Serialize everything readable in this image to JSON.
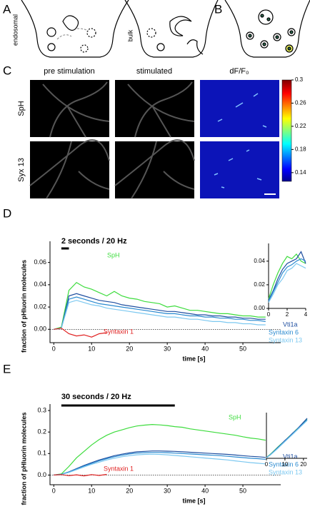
{
  "panel_labels": [
    "A",
    "B",
    "C",
    "D",
    "E"
  ],
  "panel_a": {
    "labels": [
      "endosomal",
      "bulk"
    ]
  },
  "panel_c": {
    "columns": [
      "pre stimulation",
      "stimulated",
      "dF/F₀"
    ],
    "rows": [
      "SpH",
      "Syx 13"
    ],
    "colorbar": {
      "ylim": [
        0.125,
        0.3
      ],
      "yticks": [
        0.3,
        0.26,
        0.22,
        0.18,
        0.14
      ]
    }
  },
  "chart_data": [
    {
      "type": "line",
      "xlabel": "time [s]",
      "ylabel": "fraction of pHluorin molecules",
      "stimulus": {
        "label": "2 seconds / 20 Hz",
        "x": [
          2,
          4
        ]
      },
      "xlim": [
        -1,
        60
      ],
      "xticks": [
        0,
        10,
        20,
        30,
        40,
        50
      ],
      "ylim": [
        -0.012,
        0.079
      ],
      "yticks": [
        {
          "value": 0,
          "label": "0.00"
        },
        0.02,
        0.04,
        0.06
      ],
      "x": [
        0,
        2,
        4,
        6,
        8,
        10,
        12,
        14,
        16,
        18,
        20,
        22,
        24,
        26,
        28,
        30,
        32,
        34,
        36,
        38,
        40,
        42,
        44,
        46,
        48,
        50,
        52,
        54,
        56
      ],
      "series": [
        {
          "name": "SpH",
          "color": "#3ddc3d",
          "values": [
            0,
            0.002,
            0.035,
            0.042,
            0.038,
            0.036,
            0.033,
            0.03,
            0.034,
            0.03,
            0.028,
            0.027,
            0.025,
            0.024,
            0.023,
            0.02,
            0.021,
            0.019,
            0.017,
            0.017,
            0.016,
            0.015,
            0.014,
            0.014,
            0.013,
            0.012,
            0.012,
            0.011,
            0.011
          ]
        },
        {
          "name": "Vti1a",
          "color": "#1f4fa0",
          "values": [
            0,
            0.001,
            0.03,
            0.032,
            0.03,
            0.028,
            0.026,
            0.025,
            0.024,
            0.022,
            0.021,
            0.02,
            0.019,
            0.018,
            0.017,
            0.016,
            0.016,
            0.015,
            0.014,
            0.013,
            0.013,
            0.012,
            0.012,
            0.011,
            0.011,
            0.01,
            0.01,
            0.009,
            0.009
          ]
        },
        {
          "name": "Syntaxin 6",
          "color": "#2a8ad0",
          "values": [
            0,
            0.001,
            0.027,
            0.029,
            0.027,
            0.025,
            0.023,
            0.022,
            0.021,
            0.02,
            0.019,
            0.018,
            0.017,
            0.016,
            0.015,
            0.014,
            0.014,
            0.013,
            0.012,
            0.012,
            0.011,
            0.011,
            0.01,
            0.01,
            0.009,
            0.009,
            0.008,
            0.008,
            0.007
          ]
        },
        {
          "name": "Syntaxin 13",
          "color": "#7cc8f0",
          "values": [
            0,
            0.001,
            0.024,
            0.026,
            0.024,
            0.022,
            0.021,
            0.019,
            0.018,
            0.017,
            0.016,
            0.015,
            0.014,
            0.013,
            0.012,
            0.011,
            0.011,
            0.01,
            0.009,
            0.009,
            0.008,
            0.007,
            0.007,
            0.006,
            0.006,
            0.005,
            0.005,
            0.004,
            0.004
          ]
        },
        {
          "name": "Syntaxin 1",
          "color": "#e02020",
          "values": [
            0,
            0.001,
            -0.004,
            -0.006,
            -0.005,
            -0.007,
            -0.004,
            -0.003,
            null,
            null,
            null,
            null,
            null,
            null,
            null,
            null,
            null,
            null,
            null,
            null,
            null,
            null,
            null,
            null,
            null,
            null,
            null,
            null,
            null
          ]
        }
      ]
    },
    {
      "type": "line",
      "xlim": [
        0,
        4
      ],
      "xticks": [
        0,
        2,
        4
      ],
      "ylim": [
        0,
        0.055
      ],
      "yticks": [
        {
          "value": 0,
          "label": "0.00"
        },
        0.02,
        0.04
      ],
      "x": [
        0,
        0.5,
        1,
        1.5,
        2,
        2.5,
        3,
        3.5,
        4
      ],
      "series": [
        {
          "color": "#3ddc3d",
          "values": [
            0.008,
            0.02,
            0.03,
            0.038,
            0.044,
            0.042,
            0.046,
            0.04,
            0.038
          ]
        },
        {
          "color": "#1f4fa0",
          "values": [
            0.007,
            0.015,
            0.025,
            0.033,
            0.038,
            0.04,
            0.042,
            0.048,
            0.038
          ]
        },
        {
          "color": "#2a8ad0",
          "values": [
            0.006,
            0.014,
            0.022,
            0.03,
            0.035,
            0.037,
            0.04,
            0.042,
            0.04
          ]
        },
        {
          "color": "#7cc8f0",
          "values": [
            0.005,
            0.012,
            0.02,
            0.025,
            0.032,
            0.034,
            0.038,
            0.036,
            0.034
          ]
        }
      ]
    },
    {
      "type": "line",
      "xlabel": "time [s]",
      "ylabel": "fraction of pHluorin molecules",
      "stimulus": {
        "label": "30 seconds / 20 Hz",
        "x": [
          2,
          32
        ]
      },
      "xlim": [
        -1,
        60
      ],
      "xticks": [
        0,
        10,
        20,
        30,
        40,
        50
      ],
      "ylim": [
        -0.045,
        0.33
      ],
      "yticks": [
        {
          "value": 0,
          "label": "0.0"
        },
        0.1,
        0.2,
        0.3
      ],
      "x": [
        0,
        2,
        4,
        6,
        8,
        10,
        12,
        14,
        16,
        18,
        20,
        22,
        24,
        26,
        28,
        30,
        32,
        34,
        36,
        38,
        40,
        42,
        44,
        46,
        48,
        50,
        52,
        54,
        56
      ],
      "series": [
        {
          "name": "SpH",
          "color": "#3ddc3d",
          "values": [
            0,
            0.005,
            0.04,
            0.08,
            0.11,
            0.14,
            0.165,
            0.185,
            0.2,
            0.21,
            0.22,
            0.228,
            0.232,
            0.235,
            0.233,
            0.23,
            0.225,
            0.222,
            0.215,
            0.21,
            0.205,
            0.2,
            0.195,
            0.19,
            0.185,
            0.178,
            0.172,
            0.168,
            0.162
          ]
        },
        {
          "name": "Vti1a",
          "color": "#1f4fa0",
          "values": [
            0,
            0.003,
            0.015,
            0.03,
            0.045,
            0.058,
            0.07,
            0.08,
            0.09,
            0.097,
            0.103,
            0.108,
            0.11,
            0.112,
            0.112,
            0.111,
            0.11,
            0.108,
            0.106,
            0.104,
            0.102,
            0.1,
            0.098,
            0.096,
            0.093,
            0.09,
            0.087,
            0.085,
            0.082
          ]
        },
        {
          "name": "Syntaxin 6",
          "color": "#2a8ad0",
          "values": [
            0,
            0.003,
            0.014,
            0.028,
            0.042,
            0.054,
            0.066,
            0.076,
            0.085,
            0.092,
            0.098,
            0.102,
            0.104,
            0.105,
            0.105,
            0.104,
            0.102,
            0.1,
            0.098,
            0.096,
            0.094,
            0.092,
            0.09,
            0.087,
            0.084,
            0.081,
            0.078,
            0.076,
            0.073
          ]
        },
        {
          "name": "Syntaxin 13",
          "color": "#7cc8f0",
          "values": [
            0,
            0.002,
            0.012,
            0.025,
            0.038,
            0.05,
            0.06,
            0.07,
            0.078,
            0.085,
            0.09,
            0.094,
            0.096,
            0.097,
            0.096,
            0.094,
            0.091,
            0.088,
            0.085,
            0.082,
            0.079,
            0.076,
            0.073,
            0.07,
            0.066,
            0.062,
            0.058,
            0.055,
            0.052
          ]
        },
        {
          "name": "Syntaxin 1",
          "color": "#e02020",
          "values": [
            0,
            0.002,
            -0.003,
            0.001,
            -0.004,
            0.002,
            -0.002,
            0.003,
            null,
            null,
            null,
            null,
            null,
            null,
            null,
            null,
            null,
            null,
            null,
            null,
            null,
            null,
            null,
            null,
            null,
            null,
            null,
            null,
            null
          ]
        }
      ]
    },
    {
      "type": "line",
      "xlim": [
        0,
        22
      ],
      "xticks": [
        0,
        10,
        20
      ],
      "ylim": [
        0,
        0.26
      ],
      "x": [
        0,
        2,
        4,
        6,
        8,
        10,
        12,
        14,
        16,
        18,
        20,
        22
      ],
      "series": [
        {
          "color": "#3ddc3d",
          "values": [
            0.005,
            0.022,
            0.042,
            0.062,
            0.082,
            0.1,
            0.122,
            0.14,
            0.162,
            0.18,
            0.2,
            0.222
          ]
        },
        {
          "color": "#1f4fa0",
          "values": [
            0.004,
            0.02,
            0.04,
            0.06,
            0.08,
            0.102,
            0.12,
            0.142,
            0.16,
            0.182,
            0.205,
            0.228
          ]
        },
        {
          "color": "#2a8ad0",
          "values": [
            0.004,
            0.019,
            0.038,
            0.058,
            0.078,
            0.098,
            0.118,
            0.138,
            0.158,
            0.178,
            0.198,
            0.22
          ]
        },
        {
          "color": "#7cc8f0",
          "values": [
            0.003,
            0.018,
            0.036,
            0.055,
            0.075,
            0.095,
            0.115,
            0.135,
            0.155,
            0.175,
            0.195,
            0.215
          ]
        }
      ]
    }
  ]
}
